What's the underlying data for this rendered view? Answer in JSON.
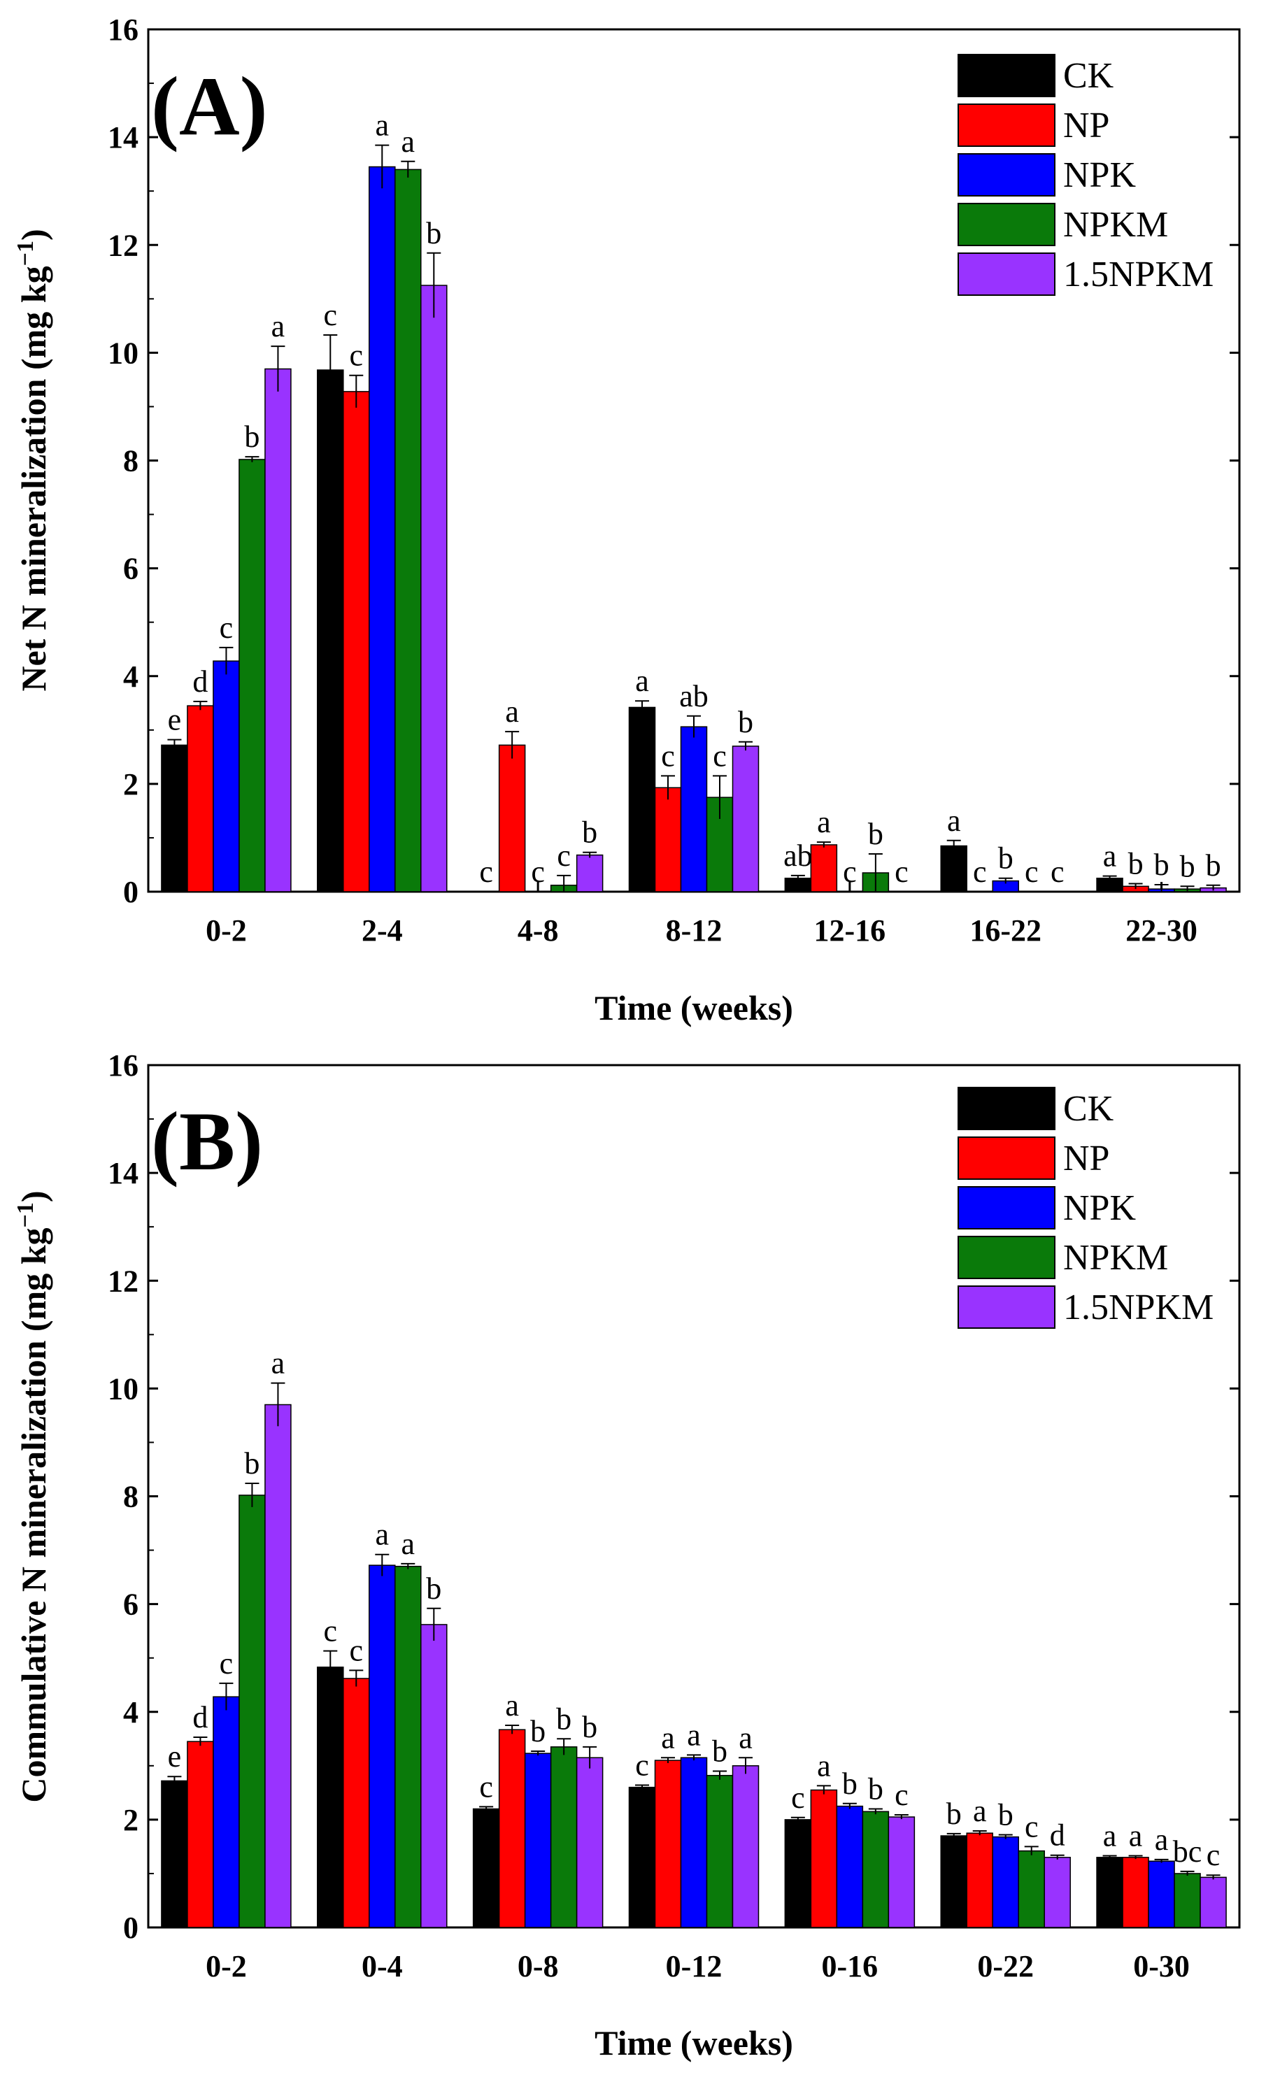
{
  "chart_data": [
    {
      "type": "bar",
      "panel_label": "(A)",
      "xlabel": "Time (weeks)",
      "ylabel": "Net N mineralization (mg kg",
      "ylabel_sup": "−1",
      "ylabel_end": ")",
      "ylim": [
        0,
        16
      ],
      "yticks": [
        "0",
        "2",
        "4",
        "6",
        "8",
        "10",
        "12",
        "14",
        "16"
      ],
      "categories": [
        "0-2",
        "2-4",
        "4-8",
        "8-12",
        "12-16",
        "16-22",
        "22-30"
      ],
      "legend_position": "top-right",
      "series": [
        {
          "name": "CK",
          "color": "#000000",
          "values": [
            2.72,
            9.68,
            0,
            3.42,
            0.25,
            0.85,
            0.25
          ],
          "errors": [
            0.1,
            0.65,
            0,
            0.12,
            0.05,
            0.1,
            0.04
          ],
          "letters": [
            "e",
            "c",
            "c",
            "a",
            "ab",
            "a",
            "a"
          ]
        },
        {
          "name": "NP",
          "color": "#ff0000",
          "values": [
            3.45,
            9.28,
            2.72,
            1.93,
            0.87,
            0,
            0.1
          ],
          "errors": [
            0.08,
            0.3,
            0.25,
            0.22,
            0.05,
            0,
            0.05
          ],
          "letters": [
            "d",
            "c",
            "a",
            "c",
            "a",
            "c",
            "b"
          ]
        },
        {
          "name": "NPK",
          "color": "#0000ff",
          "values": [
            4.28,
            13.45,
            0,
            3.06,
            0,
            0.2,
            0.05
          ],
          "errors": [
            0.25,
            0.4,
            0,
            0.2,
            0,
            0.05,
            0.08
          ],
          "letters": [
            "c",
            "a",
            "c",
            "ab",
            "c",
            "b",
            "b"
          ]
        },
        {
          "name": "NPKM",
          "color": "#0a7a0a",
          "values": [
            8.02,
            13.4,
            0.12,
            1.75,
            0.35,
            0,
            0.05
          ],
          "errors": [
            0.05,
            0.15,
            0.18,
            0.4,
            0.35,
            0,
            0.05
          ],
          "letters": [
            "b",
            "a",
            "c",
            "c",
            "b",
            "c",
            "b"
          ]
        },
        {
          "name": "1.5NPKM",
          "color": "#9933ff",
          "values": [
            9.7,
            11.25,
            0.68,
            2.7,
            0,
            0,
            0.07
          ],
          "errors": [
            0.42,
            0.6,
            0.05,
            0.08,
            0,
            0,
            0.05
          ],
          "letters": [
            "a",
            "b",
            "b",
            "b",
            "c",
            "c",
            "b"
          ]
        }
      ]
    },
    {
      "type": "bar",
      "panel_label": "(B)",
      "xlabel": "Time (weeks)",
      "ylabel": "Commulative N mineralization (mg kg",
      "ylabel_sup": "−1",
      "ylabel_end": ")",
      "ylim": [
        0,
        16
      ],
      "yticks": [
        "0",
        "2",
        "4",
        "6",
        "8",
        "10",
        "12",
        "14",
        "16"
      ],
      "categories": [
        "0-2",
        "0-4",
        "0-8",
        "0-12",
        "0-16",
        "0-22",
        "0-30"
      ],
      "legend_position": "top-right",
      "series": [
        {
          "name": "CK",
          "color": "#000000",
          "values": [
            2.72,
            4.83,
            2.2,
            2.6,
            2.0,
            1.7,
            1.3
          ],
          "errors": [
            0.08,
            0.3,
            0.04,
            0.04,
            0.04,
            0.04,
            0.03
          ],
          "letters": [
            "e",
            "c",
            "c",
            "c",
            "c",
            "b",
            "a"
          ]
        },
        {
          "name": "NP",
          "color": "#ff0000",
          "values": [
            3.45,
            4.62,
            3.67,
            3.1,
            2.55,
            1.75,
            1.3
          ],
          "errors": [
            0.08,
            0.15,
            0.08,
            0.05,
            0.08,
            0.04,
            0.03
          ],
          "letters": [
            "d",
            "c",
            "a",
            "a",
            "a",
            "a",
            "a"
          ]
        },
        {
          "name": "NPK",
          "color": "#0000ff",
          "values": [
            4.28,
            6.72,
            3.23,
            3.15,
            2.25,
            1.68,
            1.23
          ],
          "errors": [
            0.25,
            0.2,
            0.04,
            0.05,
            0.05,
            0.04,
            0.03
          ],
          "letters": [
            "c",
            "a",
            "b",
            "a",
            "b",
            "b",
            "a"
          ]
        },
        {
          "name": "NPKM",
          "color": "#0a7a0a",
          "values": [
            8.02,
            6.7,
            3.35,
            2.82,
            2.15,
            1.42,
            1.0
          ],
          "errors": [
            0.22,
            0.05,
            0.15,
            0.08,
            0.05,
            0.08,
            0.04
          ],
          "letters": [
            "b",
            "a",
            "b",
            "b",
            "b",
            "c",
            "bc"
          ]
        },
        {
          "name": "1.5NPKM",
          "color": "#9933ff",
          "values": [
            9.7,
            5.62,
            3.15,
            3.0,
            2.05,
            1.3,
            0.93
          ],
          "errors": [
            0.4,
            0.3,
            0.2,
            0.15,
            0.04,
            0.04,
            0.04
          ],
          "letters": [
            "a",
            "b",
            "b",
            "a",
            "c",
            "d",
            "c"
          ]
        }
      ]
    }
  ]
}
